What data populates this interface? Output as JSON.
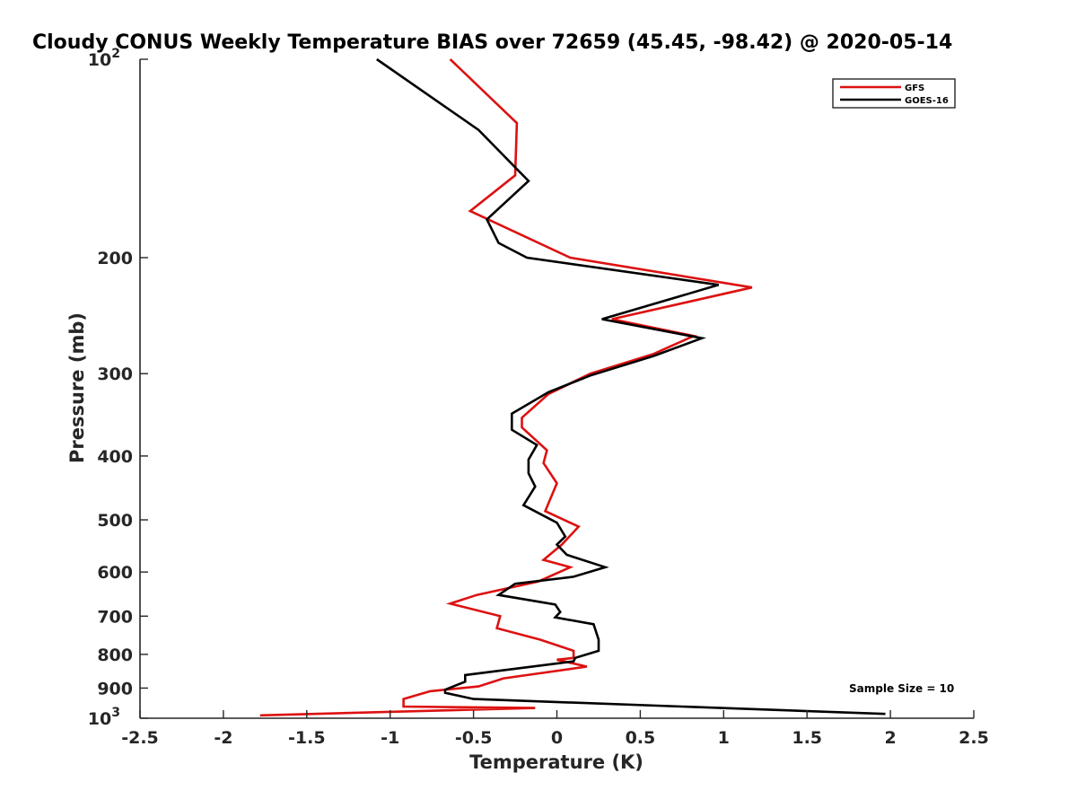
{
  "chart_data": {
    "type": "line",
    "title": "Cloudy CONUS Weekly Temperature BIAS over 72659 (45.45, -98.42) @ 2020-05-14",
    "xlabel": "Temperature (K)",
    "ylabel": "Pressure (mb)",
    "xlim": [
      -2.5,
      2.5
    ],
    "ylim": [
      100,
      1000
    ],
    "y_scale": "log",
    "y_reversed": true,
    "grid": false,
    "legend_position": "top-right",
    "x_ticks": [
      {
        "value": -2.5,
        "label": "-2.5"
      },
      {
        "value": -2,
        "label": "-2"
      },
      {
        "value": -1.5,
        "label": "-1.5"
      },
      {
        "value": -1,
        "label": "-1"
      },
      {
        "value": -0.5,
        "label": "-0.5"
      },
      {
        "value": 0,
        "label": "0"
      },
      {
        "value": 0.5,
        "label": "0.5"
      },
      {
        "value": 1,
        "label": "1"
      },
      {
        "value": 1.5,
        "label": "1.5"
      },
      {
        "value": 2,
        "label": "2"
      },
      {
        "value": 2.5,
        "label": "2.5"
      }
    ],
    "y_ticks": [
      {
        "value": 100,
        "label": "10",
        "sup": "2"
      },
      {
        "value": 200,
        "label": "200",
        "sup": ""
      },
      {
        "value": 300,
        "label": "300",
        "sup": ""
      },
      {
        "value": 400,
        "label": "400",
        "sup": ""
      },
      {
        "value": 500,
        "label": "500",
        "sup": ""
      },
      {
        "value": 600,
        "label": "600",
        "sup": ""
      },
      {
        "value": 700,
        "label": "700",
        "sup": ""
      },
      {
        "value": 800,
        "label": "800",
        "sup": ""
      },
      {
        "value": 900,
        "label": "900",
        "sup": ""
      },
      {
        "value": 1000,
        "label": "10",
        "sup": "3"
      }
    ],
    "series": [
      {
        "name": "GFS",
        "color": "#dd1111",
        "points": [
          [
            -0.64,
            100
          ],
          [
            -0.24,
            125
          ],
          [
            -0.25,
            150
          ],
          [
            -0.52,
            170
          ],
          [
            0.08,
            200
          ],
          [
            1.17,
            222
          ],
          [
            0.33,
            248
          ],
          [
            0.82,
            263
          ],
          [
            0.58,
            280
          ],
          [
            0.2,
            300
          ],
          [
            -0.05,
            322
          ],
          [
            -0.21,
            350
          ],
          [
            -0.21,
            362
          ],
          [
            -0.06,
            392
          ],
          [
            -0.08,
            410
          ],
          [
            0.0,
            440
          ],
          [
            -0.07,
            485
          ],
          [
            0.13,
            512
          ],
          [
            0.03,
            545
          ],
          [
            -0.08,
            575
          ],
          [
            0.08,
            590
          ],
          [
            -0.11,
            620
          ],
          [
            -0.48,
            650
          ],
          [
            -0.64,
            670
          ],
          [
            -0.34,
            700
          ],
          [
            -0.36,
            730
          ],
          [
            -0.1,
            760
          ],
          [
            0.1,
            790
          ],
          [
            0.1,
            810
          ],
          [
            0.0,
            815
          ],
          [
            0.18,
            835
          ],
          [
            -0.32,
            870
          ],
          [
            -0.47,
            895
          ],
          [
            -0.76,
            910
          ],
          [
            -0.92,
            935
          ],
          [
            -0.92,
            960
          ],
          [
            -0.13,
            965
          ],
          [
            -1.78,
            990
          ]
        ]
      },
      {
        "name": "GOES-16",
        "color": "#000000",
        "points": [
          [
            -1.08,
            100
          ],
          [
            -0.47,
            128
          ],
          [
            -0.17,
            153
          ],
          [
            -0.42,
            175
          ],
          [
            -0.35,
            190
          ],
          [
            -0.18,
            200
          ],
          [
            0.97,
            220
          ],
          [
            0.27,
            248
          ],
          [
            0.87,
            265
          ],
          [
            0.58,
            282
          ],
          [
            0.2,
            302
          ],
          [
            -0.05,
            320
          ],
          [
            -0.27,
            345
          ],
          [
            -0.27,
            365
          ],
          [
            -0.12,
            385
          ],
          [
            -0.17,
            405
          ],
          [
            -0.17,
            425
          ],
          [
            -0.13,
            445
          ],
          [
            -0.2,
            475
          ],
          [
            0.0,
            505
          ],
          [
            0.05,
            530
          ],
          [
            0.0,
            545
          ],
          [
            0.06,
            565
          ],
          [
            0.29,
            590
          ],
          [
            0.1,
            610
          ],
          [
            -0.25,
            625
          ],
          [
            -0.35,
            650
          ],
          [
            -0.01,
            672
          ],
          [
            0.02,
            690
          ],
          [
            -0.01,
            703
          ],
          [
            0.22,
            720
          ],
          [
            0.25,
            760
          ],
          [
            0.25,
            790
          ],
          [
            0.11,
            810
          ],
          [
            0.1,
            820
          ],
          [
            -0.55,
            860
          ],
          [
            -0.55,
            880
          ],
          [
            -0.67,
            905
          ],
          [
            -0.67,
            915
          ],
          [
            -0.5,
            935
          ],
          [
            1.97,
            985
          ]
        ]
      }
    ],
    "annotations": [
      {
        "text": "Sample Size = 10"
      }
    ]
  }
}
